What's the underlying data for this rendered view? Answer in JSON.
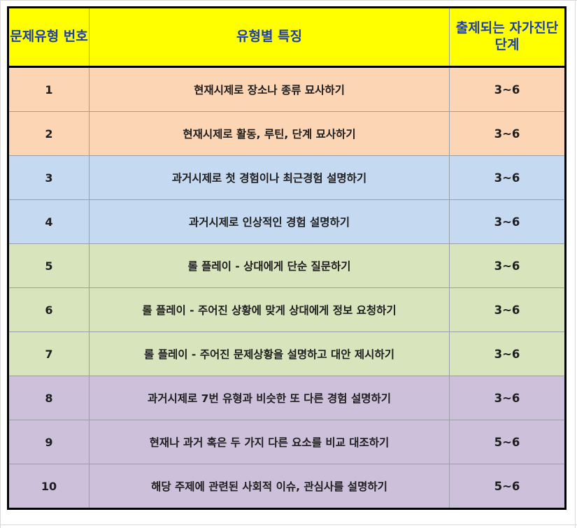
{
  "table": {
    "headers": [
      "문제유형 번호",
      "유형별 특징",
      "출제되는 자가진단 단계"
    ],
    "rows": [
      {
        "num": "1",
        "desc": "현재시제로 장소나 종류 묘사하기",
        "level": "3~6",
        "group": "orange"
      },
      {
        "num": "2",
        "desc": "현재시제로 활동, 루틴, 단계 묘사하기",
        "level": "3~6",
        "group": "orange"
      },
      {
        "num": "3",
        "desc": "과거시제로 첫 경험이나 최근경험 설명하기",
        "level": "3~6",
        "group": "blue"
      },
      {
        "num": "4",
        "desc": "과거시제로 인상적인 경험 설명하기",
        "level": "3~6",
        "group": "blue"
      },
      {
        "num": "5",
        "desc": "롤 플레이 - 상대에게 단순 질문하기",
        "level": "3~6",
        "group": "green"
      },
      {
        "num": "6",
        "desc": "롤 플레이 - 주어진 상황에 맞게 상대에게 정보 요청하기",
        "level": "3~6",
        "group": "green"
      },
      {
        "num": "7",
        "desc": "롤 플레이 - 주어진 문제상황을 설명하고 대안 제시하기",
        "level": "3~6",
        "group": "green"
      },
      {
        "num": "8",
        "desc": "과거시제로 7번 유형과 비슷한 또 다른 경험 설명하기",
        "level": "3~6",
        "group": "purple"
      },
      {
        "num": "9",
        "desc": "현재나 과거 혹은 두 가지 다른 요소를 비교 대조하기",
        "level": "5~6",
        "group": "purple"
      },
      {
        "num": "10",
        "desc": "해당 주제에 관련된 사회적 이슈, 관심사를 설명하기",
        "level": "5~6",
        "group": "purple"
      }
    ]
  },
  "colors": {
    "header_bg": "#ffff00",
    "header_text": "#1f3fa8",
    "orange": "#fcd5b4",
    "blue": "#c5d9f1",
    "green": "#d8e4bc",
    "purple": "#ccc0da"
  }
}
